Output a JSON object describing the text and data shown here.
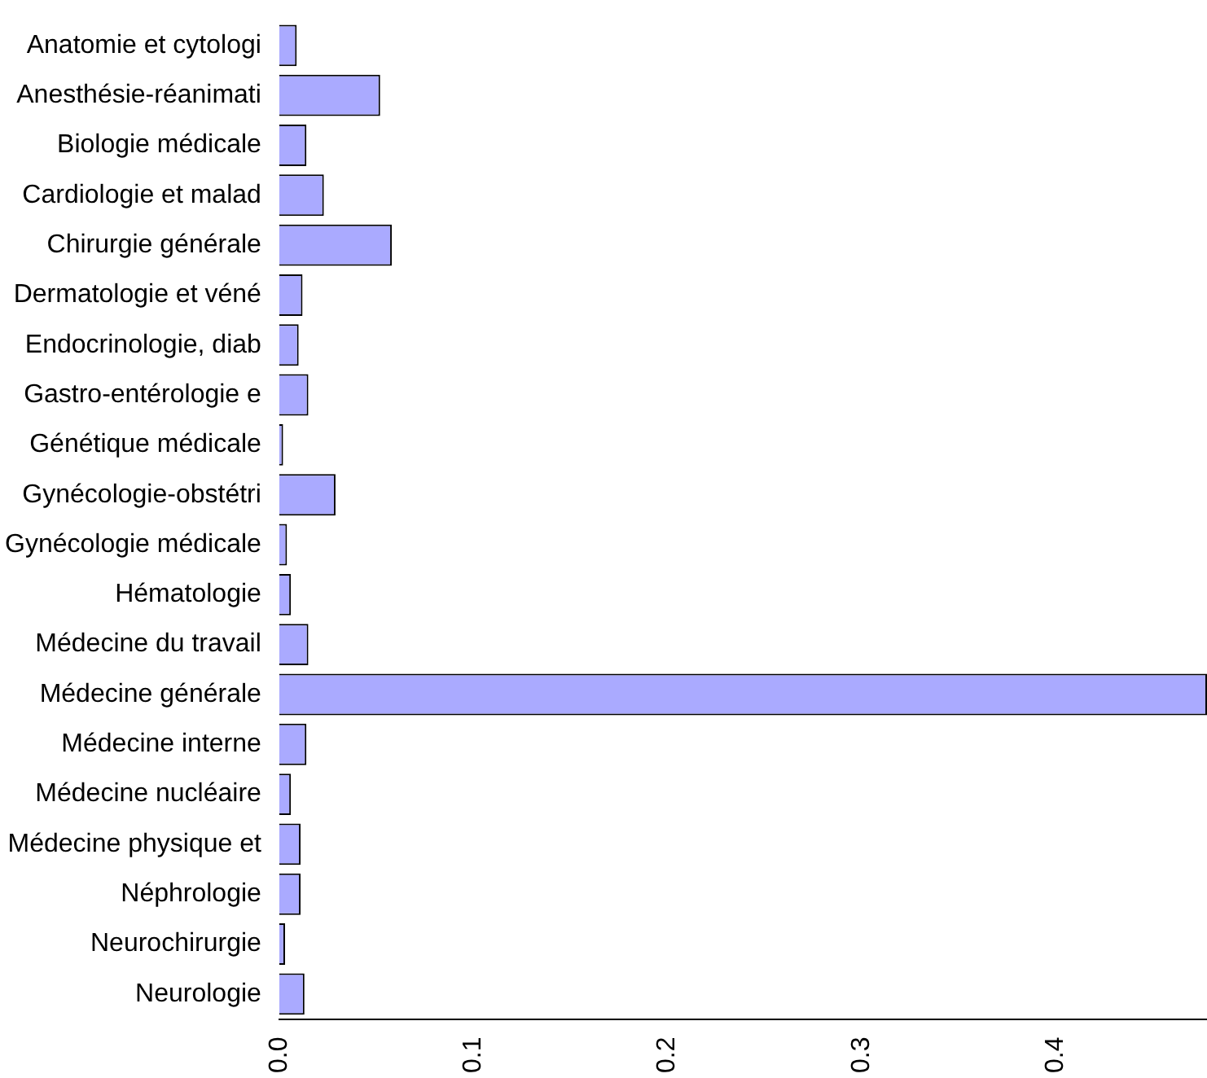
{
  "chart_data": {
    "type": "bar",
    "orientation": "horizontal",
    "categories": [
      "Anatomie et cytologi",
      "Anesthésie-réanimati",
      "Biologie médicale",
      "Cardiologie et malad",
      "Chirurgie générale",
      "Dermatologie et véné",
      "Endocrinologie, diab",
      "Gastro-entérologie e",
      "Génétique médicale",
      "Gynécologie-obstétri",
      "Gynécologie médicale",
      "Hématologie",
      "Médecine du travail",
      "Médecine générale",
      "Médecine interne",
      "Médecine nucléaire",
      "Médecine physique et",
      "Néphrologie",
      "Neurochirurgie",
      "Neurologie"
    ],
    "values": [
      0.009,
      0.052,
      0.014,
      0.023,
      0.058,
      0.012,
      0.01,
      0.015,
      0.002,
      0.029,
      0.004,
      0.006,
      0.015,
      0.478,
      0.014,
      0.006,
      0.011,
      0.011,
      0.003,
      0.013
    ],
    "color": "#aaaaff",
    "xlim": [
      0,
      0.478
    ],
    "xticks": [
      {
        "value": 0,
        "label": "0.0"
      },
      0.1,
      0.2,
      0.3,
      0.4
    ],
    "grid": false,
    "legend": false
  }
}
